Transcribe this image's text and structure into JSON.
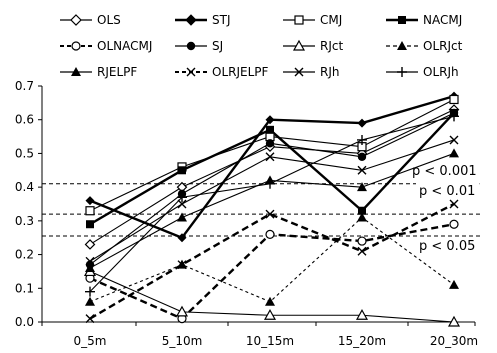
{
  "chart_data": {
    "type": "line",
    "title": "",
    "xlabel": "",
    "ylabel": "",
    "x": [
      "0_5m",
      "5_10m",
      "10_15m",
      "15_20m",
      "20_30m"
    ],
    "ylim": [
      0.0,
      0.7
    ],
    "yticks": [
      "0.0",
      "0.1",
      "0.2",
      "0.3",
      "0.4",
      "0.5",
      "0.6",
      "0.7"
    ],
    "grid": false,
    "legend_position": "top",
    "series": [
      {
        "name": "OLS",
        "values": [
          0.23,
          0.4,
          0.52,
          0.5,
          0.63
        ],
        "marker": "diamond-open",
        "dash": "solid",
        "weight": "thin"
      },
      {
        "name": "STJ",
        "values": [
          0.36,
          0.25,
          0.6,
          0.59,
          0.67
        ],
        "marker": "diamond-filled",
        "dash": "solid",
        "weight": "thick"
      },
      {
        "name": "CMJ",
        "values": [
          0.33,
          0.46,
          0.55,
          0.52,
          0.66
        ],
        "marker": "square-open",
        "dash": "solid",
        "weight": "thin"
      },
      {
        "name": "NACMJ",
        "values": [
          0.29,
          0.45,
          0.57,
          0.33,
          0.62
        ],
        "marker": "square-filled",
        "dash": "solid",
        "weight": "thick"
      },
      {
        "name": "OLNACMJ",
        "values": [
          0.13,
          0.01,
          0.26,
          0.24,
          0.29
        ],
        "marker": "circle-open",
        "dash": "dash",
        "weight": "thick"
      },
      {
        "name": "SJ",
        "values": [
          0.17,
          0.38,
          0.53,
          0.49,
          0.62
        ],
        "marker": "circle-filled",
        "dash": "solid",
        "weight": "thin"
      },
      {
        "name": "RJct",
        "values": [
          0.15,
          0.03,
          0.02,
          0.02,
          0.0
        ],
        "marker": "triangle-open",
        "dash": "solid",
        "weight": "thin"
      },
      {
        "name": "OLRJct",
        "values": [
          0.06,
          0.17,
          0.06,
          0.31,
          0.11
        ],
        "marker": "triangle-filled",
        "dash": "dash",
        "weight": "thin"
      },
      {
        "name": "RJELPF",
        "values": [
          0.16,
          0.31,
          0.42,
          0.4,
          0.5
        ],
        "marker": "triangle-filled",
        "dash": "solid",
        "weight": "thin"
      },
      {
        "name": "OLRJELPF",
        "values": [
          0.01,
          0.17,
          0.32,
          0.21,
          0.35
        ],
        "marker": "x",
        "dash": "dash",
        "weight": "thick"
      },
      {
        "name": "RJh",
        "values": [
          0.18,
          0.35,
          0.49,
          0.45,
          0.54
        ],
        "marker": "x",
        "dash": "solid",
        "weight": "thin"
      },
      {
        "name": "OLRJh",
        "values": [
          0.09,
          0.37,
          0.41,
          0.54,
          0.61
        ],
        "marker": "plus",
        "dash": "solid",
        "weight": "thin"
      }
    ],
    "thresholds": [
      {
        "label": "p < 0.001",
        "value": 0.41
      },
      {
        "label": "p < 0.01",
        "value": 0.32
      },
      {
        "label": "p < 0.05",
        "value": 0.255
      }
    ]
  }
}
